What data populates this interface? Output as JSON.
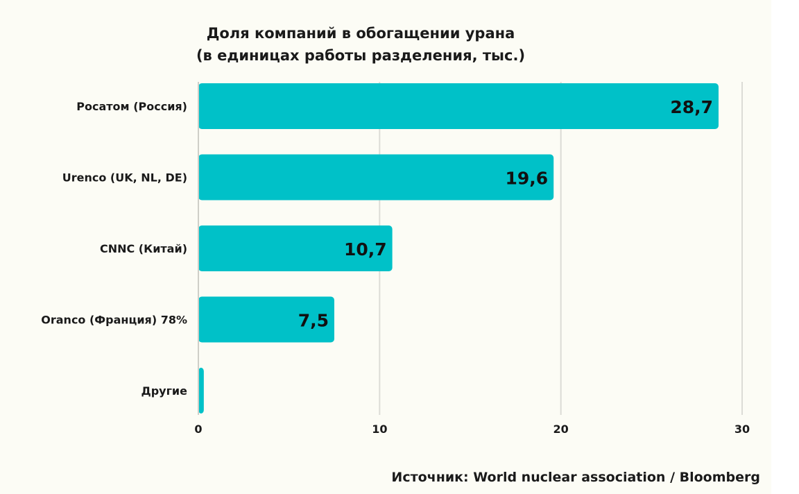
{
  "chart_data": {
    "type": "bar",
    "orientation": "horizontal",
    "title": "Доля компаний в обогащении урана",
    "subtitle": "(в единицах работы разделения, тыс.)",
    "categories": [
      "Росатом (Россия)",
      "Urenco (UK, NL, DE)",
      "CNNC (Китай)",
      "Orancо (Франция) 78%",
      "Другие"
    ],
    "values": [
      28.7,
      19.6,
      10.7,
      7.5,
      0.3
    ],
    "data_labels": [
      "28,7",
      "19,6",
      "10,7",
      "7,5",
      ""
    ],
    "xlim": [
      0,
      30
    ],
    "x_ticks": [
      0,
      10,
      20,
      30
    ],
    "x_tick_labels": [
      "0",
      "10",
      "20",
      "30"
    ],
    "grid": "vertical",
    "legend": "none",
    "bar_color": "#00c1c8"
  },
  "source": "Источник:  World nuclear association / Bloomberg"
}
